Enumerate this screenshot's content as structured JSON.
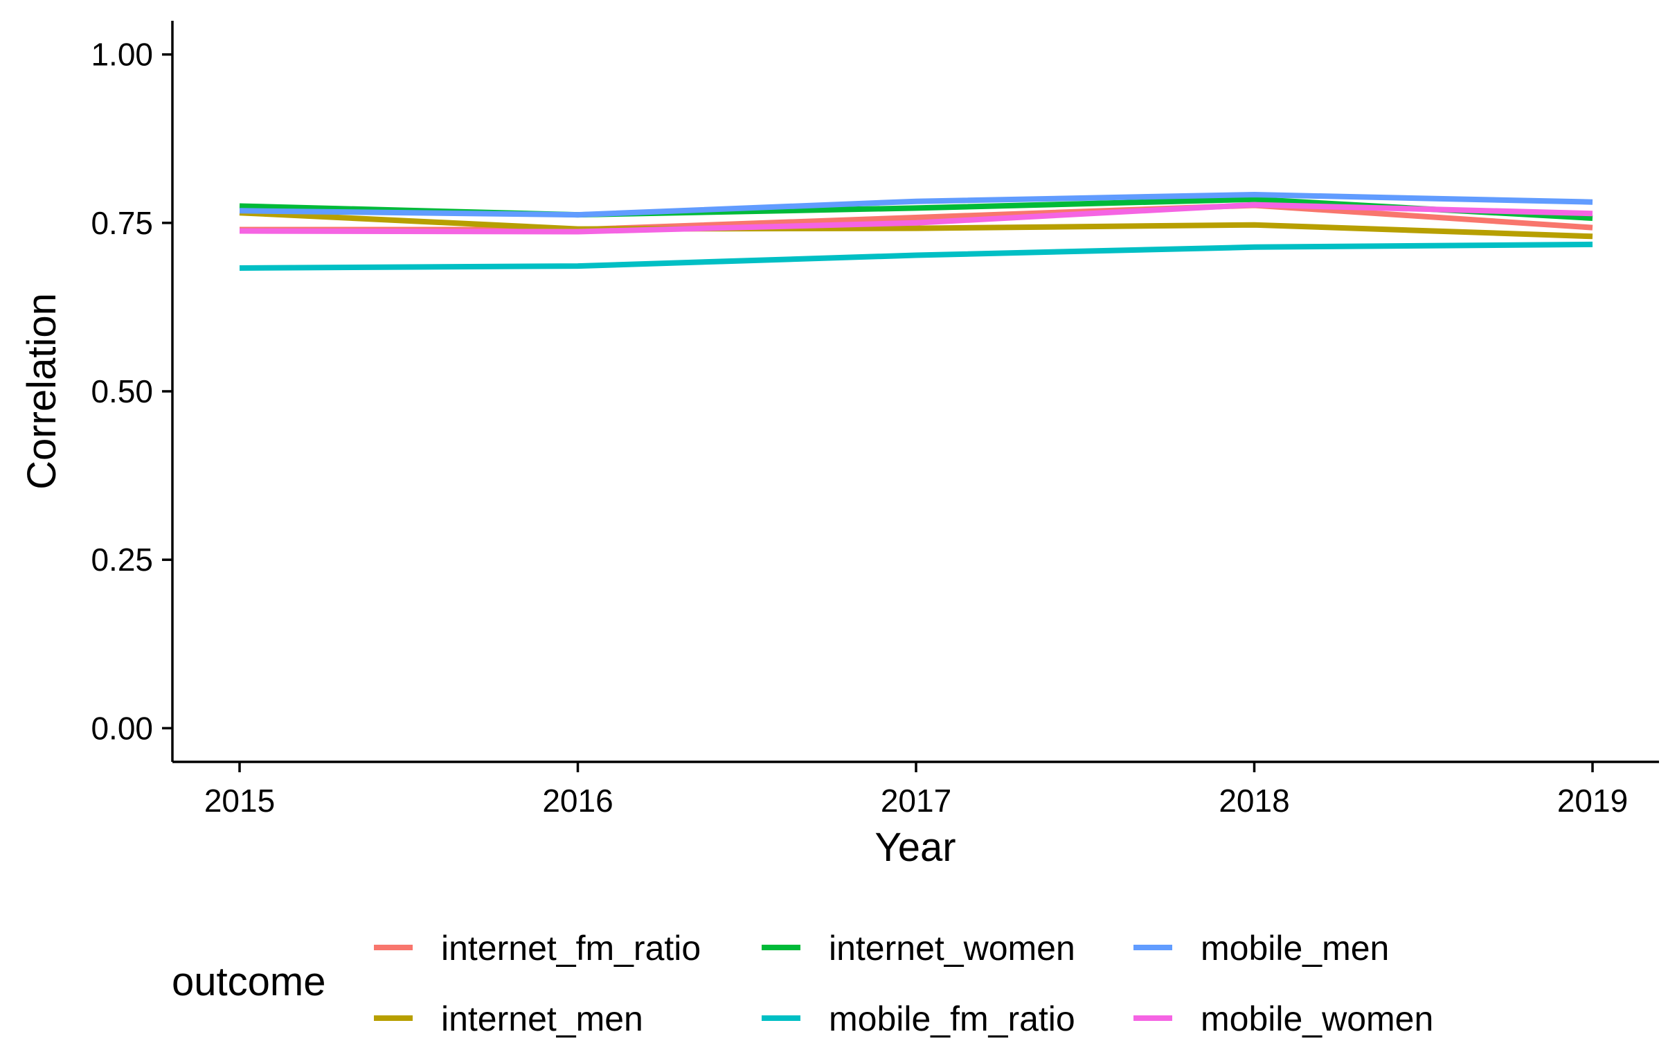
{
  "chart_data": {
    "type": "line",
    "title": "",
    "xlabel": "Year",
    "ylabel": "Correlation",
    "x": [
      "2015",
      "2016",
      "2017",
      "2018",
      "2019"
    ],
    "ylim": [
      -0.05,
      1.05
    ],
    "y_ticks": [
      "0.00",
      "0.25",
      "0.50",
      "0.75",
      "1.00"
    ],
    "y_tick_values": [
      0,
      0.25,
      0.5,
      0.75,
      1.0
    ],
    "grid": false,
    "legend": {
      "title": "outcome",
      "position": "bottom"
    },
    "series": [
      {
        "name": "internet_fm_ratio",
        "color": "#F8766D",
        "values": [
          0.74,
          0.74,
          0.758,
          0.776,
          0.743
        ]
      },
      {
        "name": "internet_men",
        "color": "#B79F00",
        "values": [
          0.765,
          0.741,
          0.742,
          0.747,
          0.73
        ]
      },
      {
        "name": "internet_women",
        "color": "#00BA38",
        "values": [
          0.775,
          0.762,
          0.772,
          0.785,
          0.757
        ]
      },
      {
        "name": "mobile_fm_ratio",
        "color": "#00BFC4",
        "values": [
          0.683,
          0.686,
          0.702,
          0.714,
          0.718
        ]
      },
      {
        "name": "mobile_men",
        "color": "#619CFF",
        "values": [
          0.768,
          0.762,
          0.782,
          0.792,
          0.781
        ]
      },
      {
        "name": "mobile_women",
        "color": "#F564E3",
        "values": [
          0.738,
          0.737,
          0.75,
          0.777,
          0.764
        ]
      }
    ]
  }
}
